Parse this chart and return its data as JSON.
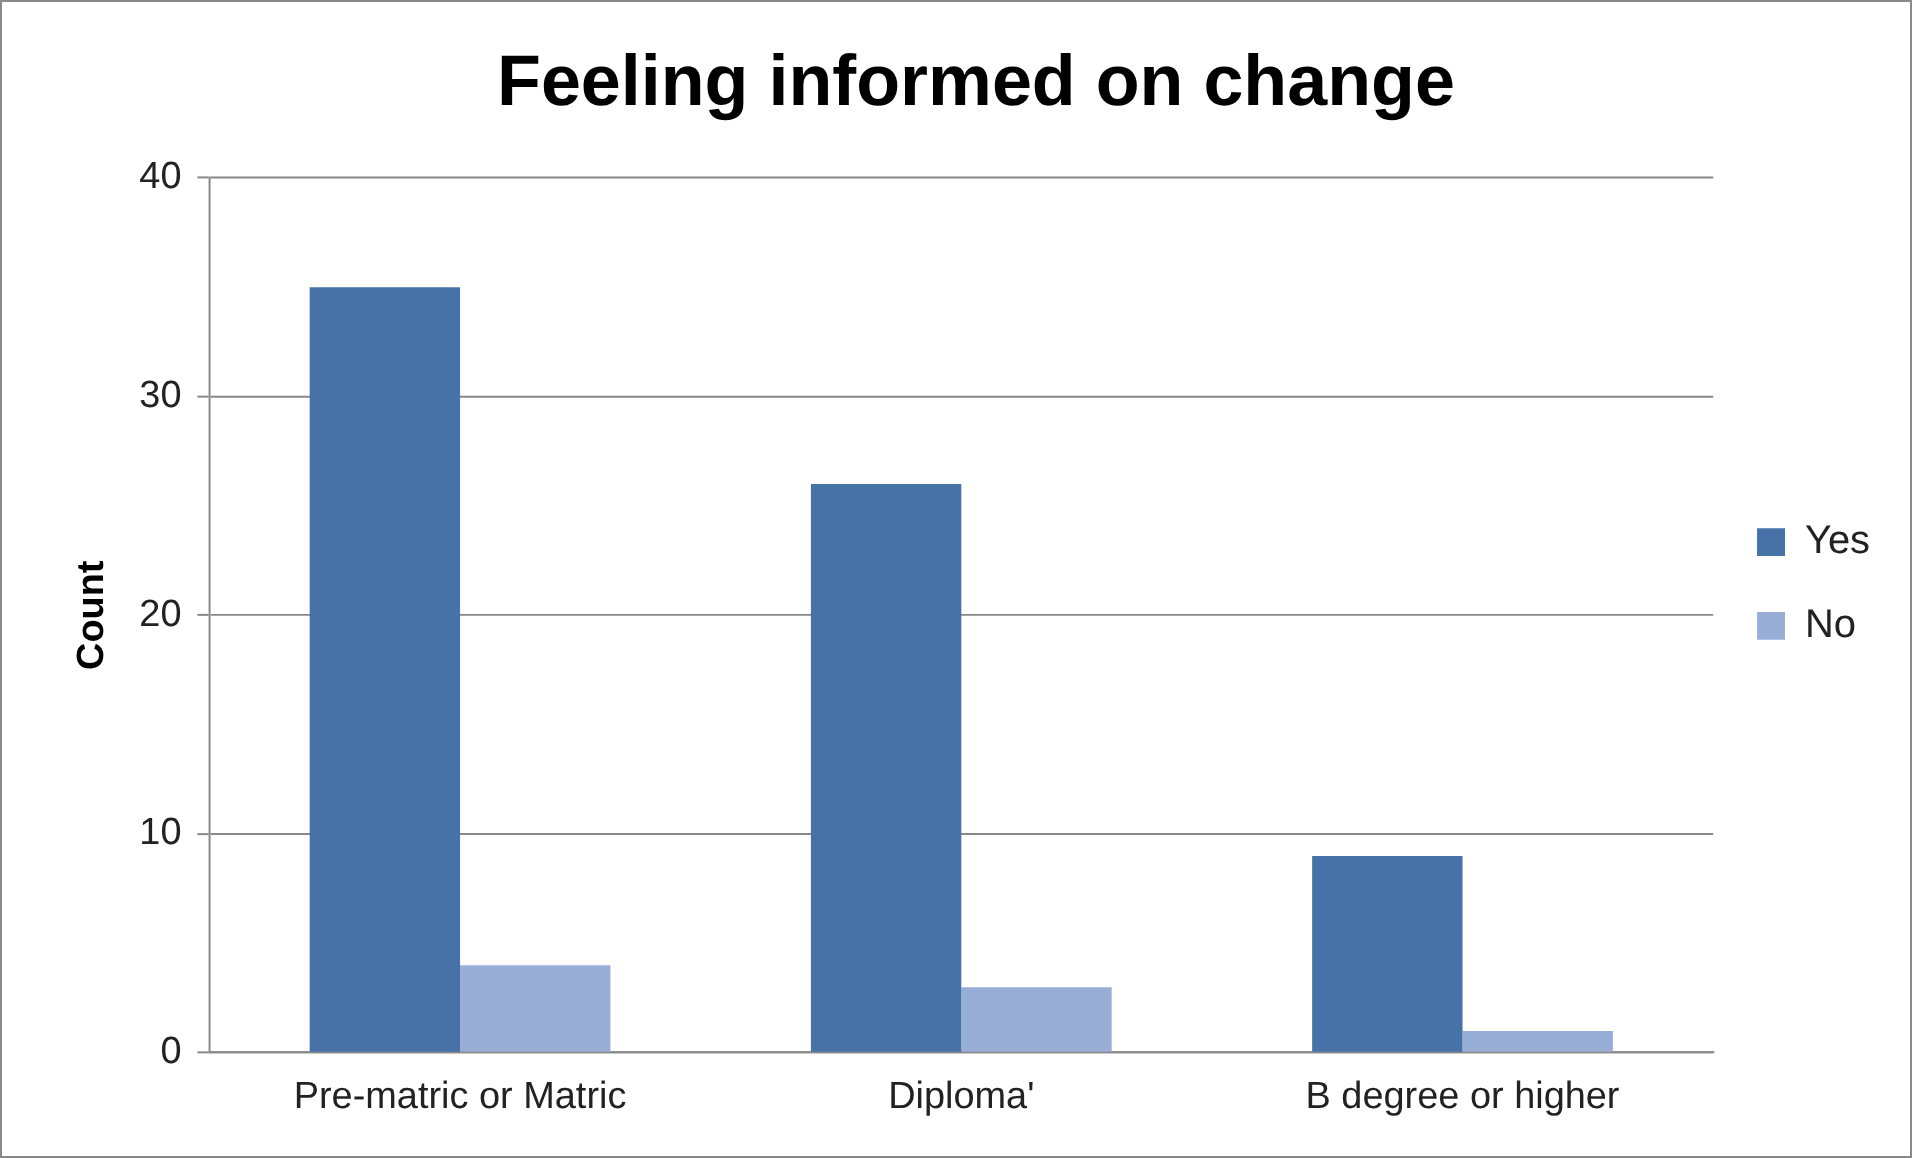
{
  "chart_data": {
    "type": "bar",
    "title": "Feeling informed on change",
    "ylabel": "Count",
    "categories": [
      "Pre-matric or Matric",
      "Diploma'",
      "B degree or higher"
    ],
    "series": [
      {
        "name": "Yes",
        "color": "#4672a8",
        "values": [
          35,
          26,
          9
        ]
      },
      {
        "name": "No",
        "color": "#98aed6",
        "values": [
          4,
          3,
          1
        ]
      }
    ],
    "ylim": [
      0,
      40
    ],
    "yticks": [
      0,
      10,
      20,
      30,
      40
    ],
    "grid": "y",
    "legend": "right"
  }
}
